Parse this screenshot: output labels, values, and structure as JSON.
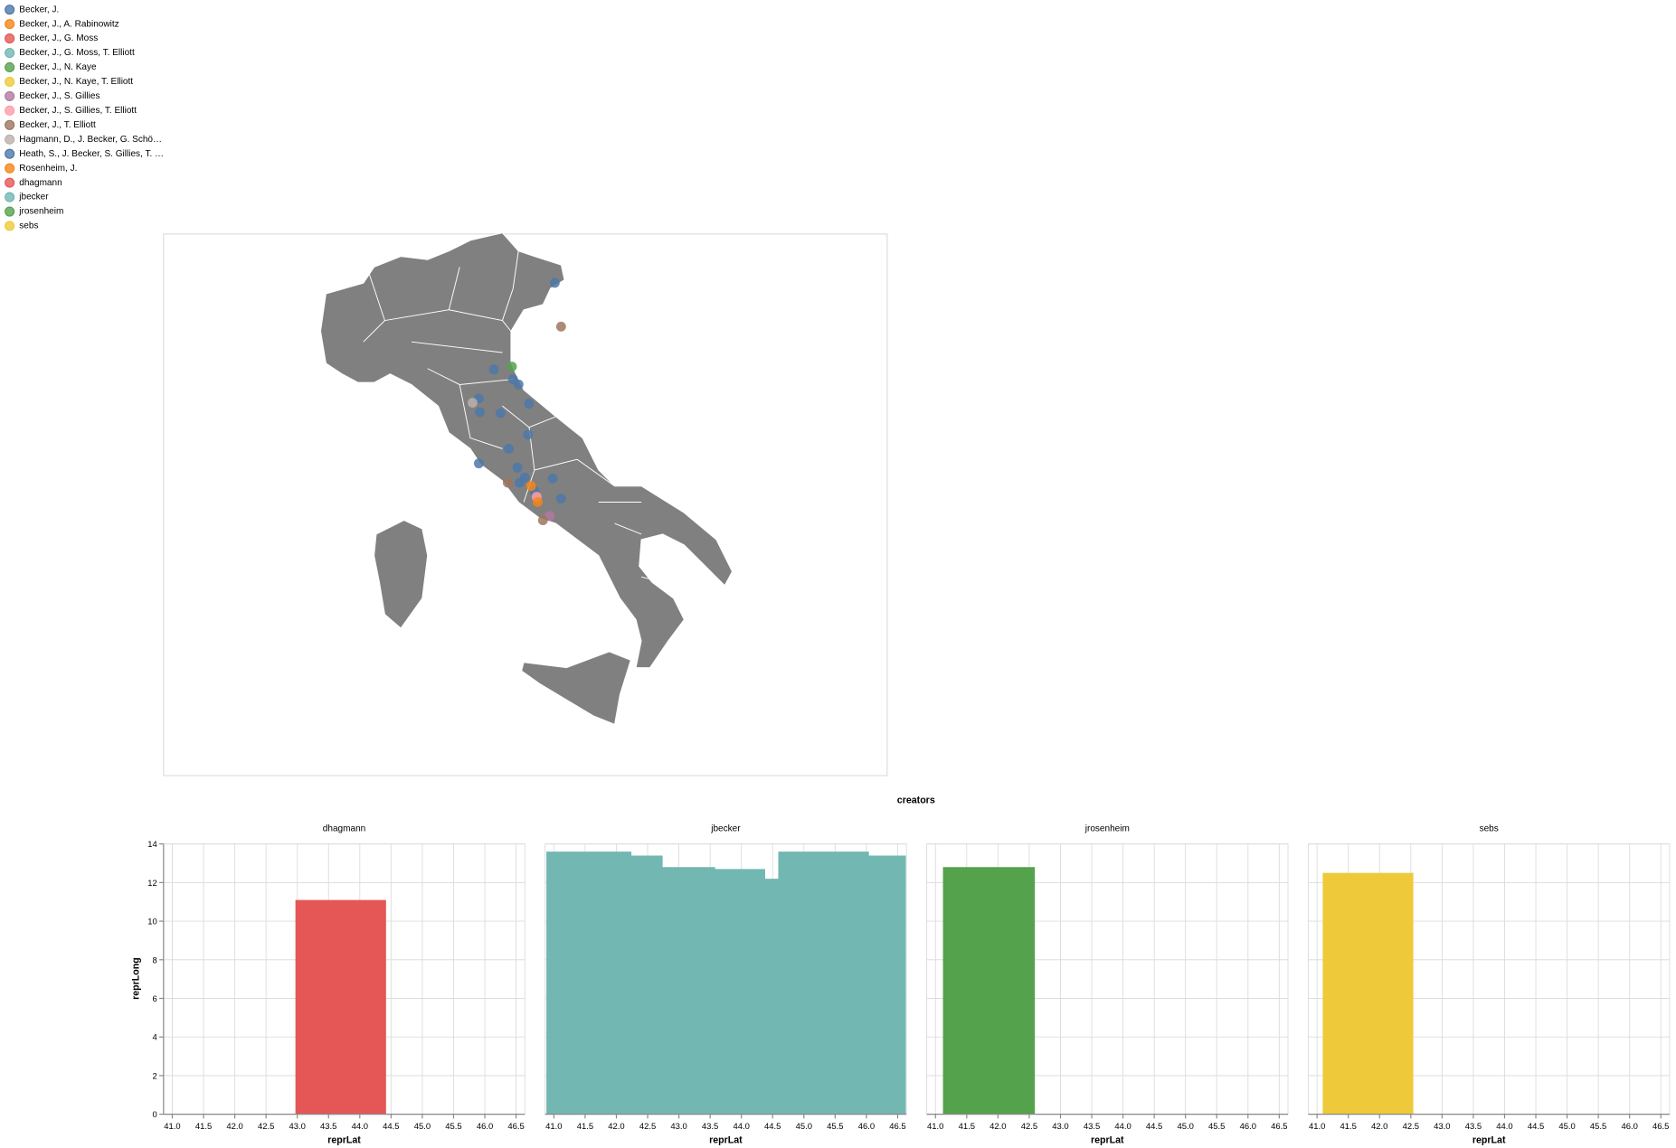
{
  "chart_data": [
    {
      "type": "scatter",
      "x_field": "lon",
      "y_field": "lat",
      "legend": "top-left",
      "xlim": [
        2.18,
        22.95
      ],
      "ylim": [
        35.6,
        47.12
      ],
      "series": [
        {
          "name": "Becker, J.",
          "color": "#4c78a8",
          "x": [
            13.41,
            11.66,
            12.21,
            12.37,
            11.23,
            11.26,
            11.85,
            12.67,
            12.64,
            12.09,
            11.23,
            12.34,
            12.55,
            12.4,
            13.35,
            13.59,
            12.83
          ],
          "values": [
            46.08,
            44.24,
            44.03,
            43.92,
            43.62,
            43.33,
            43.31,
            43.51,
            42.85,
            42.55,
            42.24,
            42.15,
            41.94,
            41.83,
            41.92,
            41.49,
            41.65
          ]
        },
        {
          "name": "Becker, J., A. Rabinowitz",
          "color": "#f58518",
          "x": [],
          "values": []
        },
        {
          "name": "Becker, J., G. Moss",
          "color": "#e45756",
          "x": [],
          "values": []
        },
        {
          "name": "Becker, J., G. Moss, T. Elliott",
          "color": "#72b7b2",
          "x": [],
          "values": []
        },
        {
          "name": "Becker, J., N. Kaye",
          "color": "#54a24b",
          "x": [
            12.18
          ],
          "values": [
            44.3
          ]
        },
        {
          "name": "Becker, J., N. Kaye, T. Elliott",
          "color": "#eeca3b",
          "x": [],
          "values": []
        },
        {
          "name": "Becker, J., S. Gillies",
          "color": "#b279a2",
          "x": [
            13.26
          ],
          "values": [
            41.12
          ]
        },
        {
          "name": "Becker, J., S. Gillies, T. Elliott",
          "color": "#ff9da6",
          "x": [
            12.89
          ],
          "values": [
            41.53
          ]
        },
        {
          "name": "Becker, J., T. Elliott",
          "color": "#9d755d",
          "x": [
            13.59,
            12.06,
            13.07
          ],
          "values": [
            45.15,
            41.83,
            41.03
          ]
        },
        {
          "name": "Hagmann, D., J. Becker, G. Schö…",
          "color": "#bab0ac",
          "x": [
            11.05
          ],
          "values": [
            43.53
          ]
        },
        {
          "name": "Heath, S., J. Becker, S. Gillies, T. …",
          "color": "#4c78a8",
          "x": [],
          "values": []
        },
        {
          "name": "Rosenheim, J.",
          "color": "#f58518",
          "x": [
            12.73,
            12.92
          ],
          "values": [
            41.76,
            41.42
          ]
        },
        {
          "name": "dhagmann",
          "color": "#e45756",
          "x": [],
          "values": []
        },
        {
          "name": "jbecker",
          "color": "#72b7b2",
          "x": [],
          "values": []
        },
        {
          "name": "jrosenheim",
          "color": "#54a24b",
          "x": [],
          "values": []
        },
        {
          "name": "sebs",
          "color": "#eeca3b",
          "x": [],
          "values": []
        }
      ]
    },
    {
      "type": "area",
      "interpolate": "step-after",
      "title": "creators",
      "x_label": "reprLat",
      "y_label": "reprLong",
      "xlim": [
        40.86,
        46.64
      ],
      "ylim": [
        0,
        14
      ],
      "grid": true,
      "xticks": [
        {
          "value": 41,
          "label": "41.0"
        },
        41.5,
        {
          "value": 42,
          "label": "42.0"
        },
        42.5,
        {
          "value": 43,
          "label": "43.0"
        },
        43.5,
        {
          "value": 44,
          "label": "44.0"
        },
        44.5,
        {
          "value": 45,
          "label": "45.0"
        },
        45.5,
        {
          "value": 46,
          "label": "46.0"
        },
        46.5
      ],
      "yticks": [
        0,
        2,
        4,
        6,
        8,
        10,
        12,
        14
      ],
      "series": [
        {
          "name": "dhagmann",
          "color": "#e45756",
          "x": [
            42.97,
            44.42
          ],
          "values": [
            11.1,
            11.1
          ]
        },
        {
          "name": "jbecker",
          "color": "#72b7b2",
          "x": [
            40.88,
            42.24,
            42.74,
            43.58,
            44.38,
            44.59,
            46.04,
            46.63
          ],
          "values": [
            13.6,
            13.4,
            12.8,
            12.7,
            12.2,
            13.6,
            13.4,
            13.4
          ]
        },
        {
          "name": "jrosenheim",
          "color": "#54a24b",
          "x": [
            41.12,
            42.59
          ],
          "values": [
            12.8,
            12.8
          ]
        },
        {
          "name": "sebs",
          "color": "#eeca3b",
          "x": [
            41.09,
            42.54
          ],
          "values": [
            12.5,
            12.5
          ]
        }
      ]
    }
  ]
}
